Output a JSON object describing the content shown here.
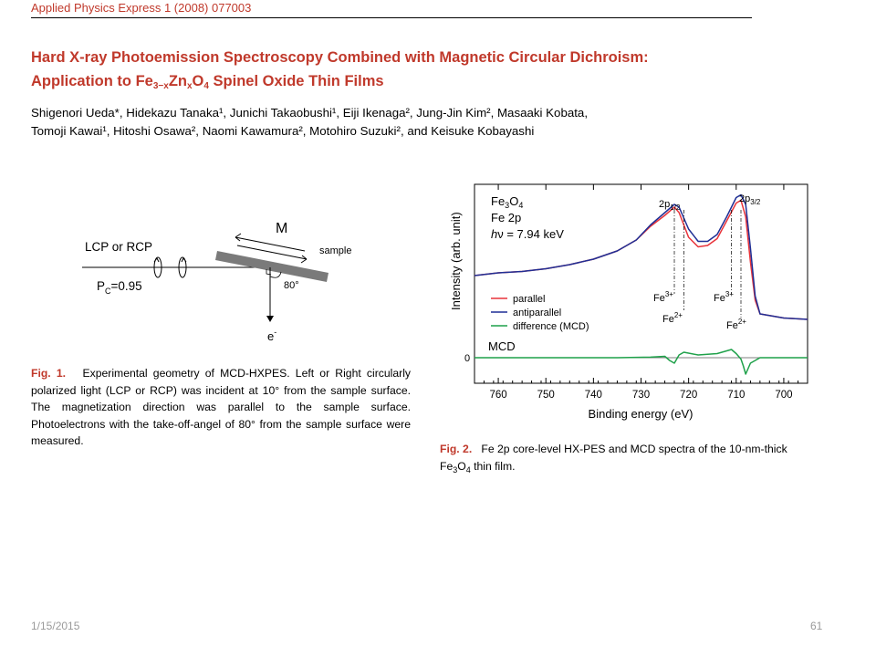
{
  "journal_ref": "Applied Physics Express 1 (2008) 077003",
  "title": {
    "line1": "Hard X-ray Photoemission Spectroscopy Combined with Magnetic Circular Dichroism:",
    "line2_prefix": "Application to Fe",
    "line2_sub1": "3−x",
    "line2_mid": "Zn",
    "line2_sub2": "x",
    "line2_o": "O",
    "line2_sub3": "4",
    "line2_suffix": " Spinel Oxide Thin Films"
  },
  "authors": {
    "line1": "Shigenori Ueda*, Hidekazu Tanaka¹, Junichi Takaobushi¹, Eiji Ikenaga², Jung-Jin Kim², Masaaki Kobata,",
    "line2": "Tomoji Kawai¹, Hitoshi Osawa², Naomi Kawamura², Motohiro Suzuki², and Keisuke Kobayashi"
  },
  "fig1": {
    "label_light": "LCP or RCP",
    "label_m": "M",
    "label_sample": "sample",
    "label_pc": "P",
    "label_pc_sub": "C",
    "label_pc_val": "=0.95",
    "label_angle": "80°",
    "label_electron": "e",
    "label_electron_sup": "-",
    "caption_label": "Fig. 1.",
    "caption_text": "Experimental geometry of MCD-HXPES. Left or Right circularly polarized light (LCP or RCP) was incident at 10° from the sample surface. The magnetization direction was parallel to the sample surface. Photoelectrons with the take-off-angel of 80° from the sample surface were measured."
  },
  "fig2": {
    "caption_label": "Fig. 2.",
    "caption_text_a": "Fe 2p core-level HX-PES and MCD spectra of the 10-nm-thick Fe",
    "caption_sub1": "3",
    "caption_o": "O",
    "caption_sub2": "4",
    "caption_text_b": " thin film."
  },
  "chart_data": {
    "type": "line",
    "xlabel": "Binding energy (eV)",
    "ylabel": "Intensity (arb. unit)",
    "xlim": [
      765,
      695
    ],
    "x_reversed": true,
    "xticks": [
      760,
      750,
      740,
      730,
      720,
      710,
      700
    ],
    "mcd_label": "MCD",
    "zero_label": "0",
    "annotations": {
      "compound_main": "Fe",
      "compound_sub1": "3",
      "compound_o": "O",
      "compound_sub2": "4",
      "level": "Fe 2p",
      "photon_h": "h",
      "photon_rest": "ν = 7.94 keV",
      "peak_half_main": "2p",
      "peak_half_sub": "1/2",
      "peak_3half_main": "2p",
      "peak_3half_sub": "3/2",
      "fe3_a": "Fe",
      "fe3_a_sup": "3+",
      "fe2_a": "Fe",
      "fe2_a_sup": "2+",
      "fe3_b": "Fe",
      "fe3_b_sup": "3+",
      "fe2_b": "Fe",
      "fe2_b_sup": "2+"
    },
    "series": [
      {
        "name": "parallel",
        "color": "#e8333a",
        "x": [
          765,
          760,
          755,
          750,
          745,
          740,
          735,
          731,
          728,
          725,
          723,
          722,
          720,
          718,
          716,
          714,
          712,
          710,
          709,
          708,
          707,
          706,
          705,
          700,
          695
        ],
        "y": [
          0.4,
          0.42,
          0.43,
          0.45,
          0.48,
          0.52,
          0.58,
          0.66,
          0.76,
          0.84,
          0.9,
          0.86,
          0.68,
          0.61,
          0.62,
          0.67,
          0.8,
          0.93,
          0.95,
          0.83,
          0.5,
          0.22,
          0.12,
          0.09,
          0.08
        ]
      },
      {
        "name": "antiparallel",
        "color": "#1f2f95",
        "x": [
          765,
          760,
          755,
          750,
          745,
          740,
          735,
          731,
          728,
          725,
          723,
          722,
          720,
          718,
          716,
          714,
          712,
          710,
          709,
          708,
          707,
          706,
          705,
          700,
          695
        ],
        "y": [
          0.4,
          0.42,
          0.43,
          0.45,
          0.48,
          0.52,
          0.58,
          0.66,
          0.77,
          0.86,
          0.92,
          0.9,
          0.74,
          0.65,
          0.65,
          0.7,
          0.83,
          0.97,
          0.99,
          0.92,
          0.6,
          0.25,
          0.12,
          0.09,
          0.08
        ]
      },
      {
        "name": "difference (MCD)",
        "color": "#1fa14a",
        "x": [
          765,
          755,
          745,
          735,
          728,
          725,
          724,
          723,
          722,
          721,
          718,
          714,
          712,
          711,
          710,
          709,
          708.5,
          708,
          707,
          705,
          700,
          695
        ],
        "y": [
          0,
          0,
          0,
          0,
          0.004,
          0.01,
          -0.02,
          -0.04,
          0.02,
          0.04,
          0.02,
          0.03,
          0.05,
          0.06,
          0.03,
          -0.01,
          -0.06,
          -0.12,
          -0.04,
          0,
          0,
          0
        ]
      }
    ]
  },
  "footer": {
    "date": "1/15/2015",
    "page": "61"
  }
}
